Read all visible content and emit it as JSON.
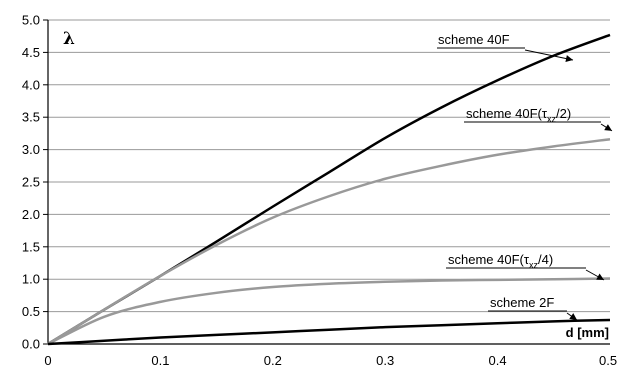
{
  "chart_data": {
    "type": "line",
    "title": "",
    "xlabel": "d [mm]",
    "ylabel": "λ",
    "xlim": [
      0,
      0.5
    ],
    "ylim": [
      0,
      5.0
    ],
    "x_ticks": [
      "0",
      "0.1",
      "0.2",
      "0.3",
      "0.4",
      "0.5"
    ],
    "y_ticks": [
      "0.0",
      "0.5",
      "1.0",
      "1.5",
      "2.0",
      "2.5",
      "3.0",
      "3.5",
      "4.0",
      "4.5",
      "5.0"
    ],
    "grid": "horizontal",
    "series": [
      {
        "name": "scheme 40F",
        "color": "#000000",
        "x": [
          0,
          0.05,
          0.1,
          0.15,
          0.2,
          0.25,
          0.3,
          0.35,
          0.4,
          0.45,
          0.5
        ],
        "y": [
          0,
          0.53,
          1.05,
          1.58,
          2.12,
          2.65,
          3.18,
          3.65,
          4.07,
          4.45,
          4.77
        ]
      },
      {
        "name": "scheme 40F(τxz/2)",
        "color": "#999999",
        "x": [
          0,
          0.05,
          0.1,
          0.15,
          0.2,
          0.25,
          0.3,
          0.35,
          0.4,
          0.45,
          0.5
        ],
        "y": [
          0,
          0.53,
          1.05,
          1.53,
          1.95,
          2.28,
          2.55,
          2.75,
          2.92,
          3.05,
          3.16
        ]
      },
      {
        "name": "scheme 40F(τxz/4)",
        "color": "#999999",
        "x": [
          0,
          0.05,
          0.1,
          0.15,
          0.2,
          0.25,
          0.3,
          0.35,
          0.4,
          0.45,
          0.5
        ],
        "y": [
          0,
          0.42,
          0.65,
          0.79,
          0.88,
          0.93,
          0.96,
          0.98,
          0.99,
          1.0,
          1.01
        ]
      },
      {
        "name": "scheme 2F",
        "color": "#000000",
        "x": [
          0,
          0.05,
          0.1,
          0.15,
          0.2,
          0.25,
          0.3,
          0.35,
          0.4,
          0.45,
          0.5
        ],
        "y": [
          0,
          0.05,
          0.1,
          0.14,
          0.18,
          0.22,
          0.26,
          0.29,
          0.32,
          0.35,
          0.37
        ]
      }
    ],
    "annotations": [
      {
        "series": 0,
        "text": "scheme 40F",
        "sub": ""
      },
      {
        "series": 1,
        "text": "scheme 40F(τ",
        "sub": "xz",
        "tail": "/2)"
      },
      {
        "series": 2,
        "text": "scheme 40F(τ",
        "sub": "xz",
        "tail": "/4)"
      },
      {
        "series": 3,
        "text": "scheme 2F",
        "sub": ""
      }
    ]
  }
}
